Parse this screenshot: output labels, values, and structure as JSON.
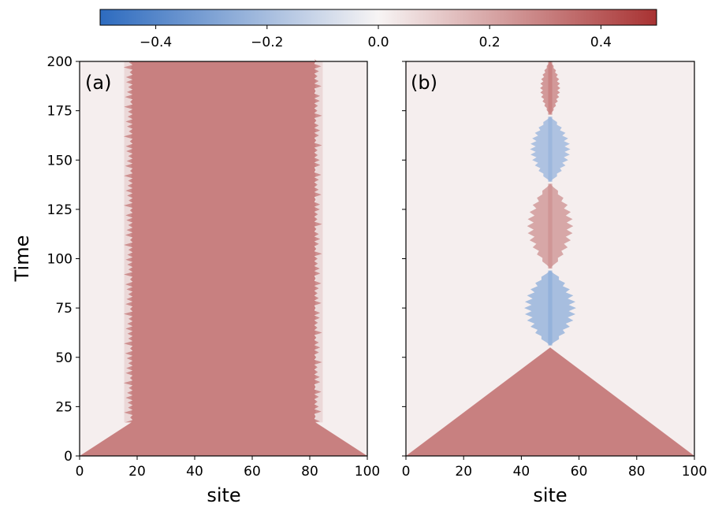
{
  "chart_data": {
    "type": "heatmap",
    "colorbar": {
      "range": [
        -0.5,
        0.5
      ],
      "ticks": [
        -0.4,
        -0.2,
        0.0,
        0.2,
        0.4
      ],
      "tick_labels": [
        "−0.4",
        "−0.2",
        "0.0",
        "0.2",
        "0.4"
      ],
      "colors": {
        "neg": "#2d6bbf",
        "mid": "#f7f4f4",
        "pos": "#a83232"
      },
      "orientation": "horizontal",
      "placement": "top"
    },
    "ylabel": "Time",
    "ylim": [
      0,
      200
    ],
    "y_ticks": [
      0,
      25,
      50,
      75,
      100,
      125,
      150,
      175,
      200
    ],
    "y_tick_labels": [
      "0",
      "25",
      "50",
      "75",
      "100",
      "125",
      "150",
      "175",
      "200"
    ],
    "panels": [
      {
        "label": "(a)",
        "xlabel": "site",
        "xlim": [
          0,
          100
        ],
        "x_ticks": [
          0,
          20,
          40,
          60,
          80,
          100
        ],
        "x_tick_labels": [
          "0",
          "20",
          "40",
          "60",
          "80",
          "100"
        ],
        "description": "cone spreading from edges, saturating into a band between sites ~18 and ~82",
        "value": 0.3,
        "band": [
          18,
          82
        ],
        "cone_apex_time": 17
      },
      {
        "label": "(b)",
        "xlabel": "site",
        "xlim": [
          0,
          100
        ],
        "x_ticks": [
          0,
          20,
          40,
          60,
          80,
          100
        ],
        "x_tick_labels": [
          "0",
          "20",
          "40",
          "60",
          "80",
          "100"
        ],
        "description": "triangular cone collapsing at site 50 by t~55, then oscillating narrow signal around site 50",
        "value": 0.3,
        "cone_apex": {
          "site": 50,
          "time": 55
        },
        "blobs": [
          {
            "site": 50,
            "time_start": 56,
            "time_end": 94,
            "width": 9,
            "value": -0.22
          },
          {
            "site": 50,
            "time_start": 95,
            "time_end": 138,
            "width": 8,
            "value": 0.22
          },
          {
            "site": 50,
            "time_start": 139,
            "time_end": 172,
            "width": 7,
            "value": -0.2
          },
          {
            "site": 50,
            "time_start": 173,
            "time_end": 200,
            "width": 3.5,
            "value": 0.26
          }
        ]
      }
    ]
  }
}
